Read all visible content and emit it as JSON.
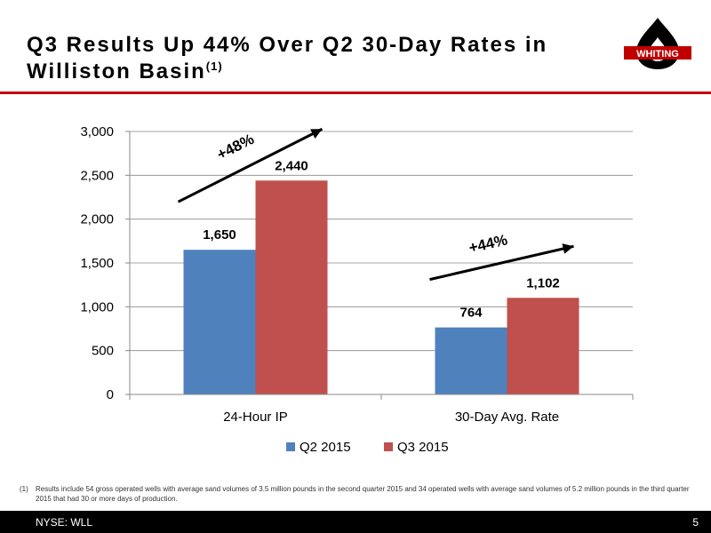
{
  "slide": {
    "title": "Q3 Results Up 44%  Over Q2 30-Day Rates in Williston Basin",
    "title_sup": "(1)",
    "logo_text": "WHITING",
    "footnote_mark": "(1)",
    "footnote": "Results include 54 gross operated wells with average sand volumes of 3.5 million pounds in the second quarter 2015 and 34 operated wells with average sand volumes of 5.2 million pounds in the third quarter 2015 that had 30 or more days of production.",
    "ticker": "NYSE:  WLL",
    "page_number": "5"
  },
  "colors": {
    "accent_red": "#c00000",
    "series_q2": "#4f81bd",
    "series_q3": "#c0504d"
  },
  "chart_data": {
    "type": "bar",
    "categories": [
      "24-Hour IP",
      "30-Day Avg. Rate"
    ],
    "series": [
      {
        "name": "Q2 2015",
        "values": [
          1650,
          764
        ],
        "labels": [
          "1,650",
          "764"
        ],
        "color": "#4f81bd"
      },
      {
        "name": "Q3 2015",
        "values": [
          2440,
          1102
        ],
        "labels": [
          "2,440",
          "1,102"
        ],
        "color": "#c0504d"
      }
    ],
    "ylim": [
      0,
      3000
    ],
    "yticks": [
      0,
      500,
      1000,
      1500,
      2000,
      2500,
      3000
    ],
    "ytick_labels": [
      "0",
      "500",
      "1,000",
      "1,500",
      "2,000",
      "2,500",
      "3,000"
    ],
    "grid": true,
    "legend_position": "bottom",
    "annotations": [
      {
        "text": "+48%",
        "category": "24-Hour IP"
      },
      {
        "text": "+44%",
        "category": "30-Day Avg. Rate"
      }
    ]
  }
}
